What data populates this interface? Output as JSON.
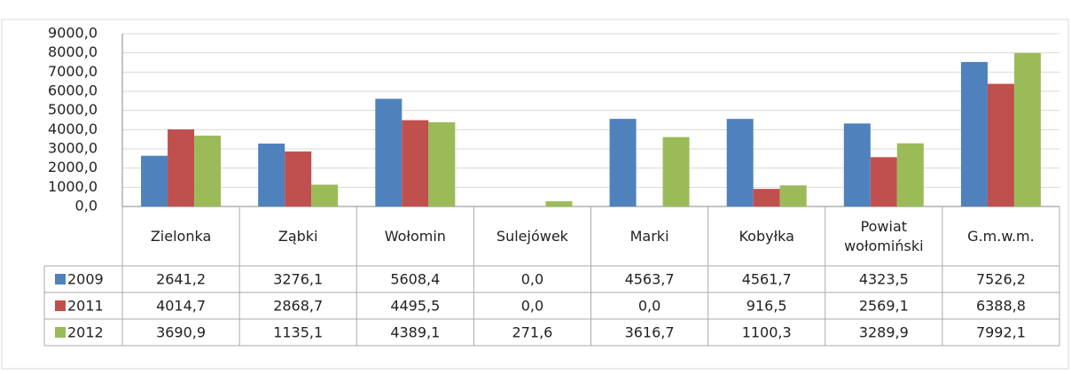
{
  "chart_data": {
    "type": "bar",
    "categories": [
      "Zielonka",
      "Ząbki",
      "Wołomin",
      "Sulejówek",
      "Marki",
      "Kobyłka",
      "Powiat wołomiński",
      "G.m.w.m."
    ],
    "series": [
      {
        "name": "2009",
        "color": "#4f81bd",
        "values": [
          2641.2,
          3276.1,
          5608.4,
          0.0,
          4563.7,
          4561.7,
          4323.5,
          7526.2
        ],
        "value_labels": [
          "2641,2",
          "3276,1",
          "5608,4",
          "0,0",
          "4563,7",
          "4561,7",
          "4323,5",
          "7526,2"
        ]
      },
      {
        "name": "2011",
        "color": "#c0504d",
        "values": [
          4014.7,
          2868.7,
          4495.5,
          0.0,
          0.0,
          916.5,
          2569.1,
          6388.8
        ],
        "value_labels": [
          "4014,7",
          "2868,7",
          "4495,5",
          "0,0",
          "0,0",
          "916,5",
          "2569,1",
          "6388,8"
        ]
      },
      {
        "name": "2012",
        "color": "#9bbb59",
        "values": [
          3690.9,
          1135.1,
          4389.1,
          271.6,
          3616.7,
          1100.3,
          3289.9,
          7992.1
        ],
        "value_labels": [
          "3690,9",
          "1135,1",
          "4389,1",
          "271,6",
          "3616,7",
          "1100,3",
          "3289,9",
          "7992,1"
        ]
      }
    ],
    "ylim": [
      0,
      9000
    ],
    "yticks": [
      {
        "value": 0,
        "label": "0,0"
      },
      {
        "value": 1000,
        "label": "1000,0"
      },
      {
        "value": 2000,
        "label": "2000,0"
      },
      {
        "value": 3000,
        "label": "3000,0"
      },
      {
        "value": 4000,
        "label": "4000,0"
      },
      {
        "value": 5000,
        "label": "5000,0"
      },
      {
        "value": 6000,
        "label": "6000,0"
      },
      {
        "value": 7000,
        "label": "7000,0"
      },
      {
        "value": 8000,
        "label": "8000,0"
      },
      {
        "value": 9000,
        "label": "9000,0"
      }
    ],
    "grid": true
  }
}
